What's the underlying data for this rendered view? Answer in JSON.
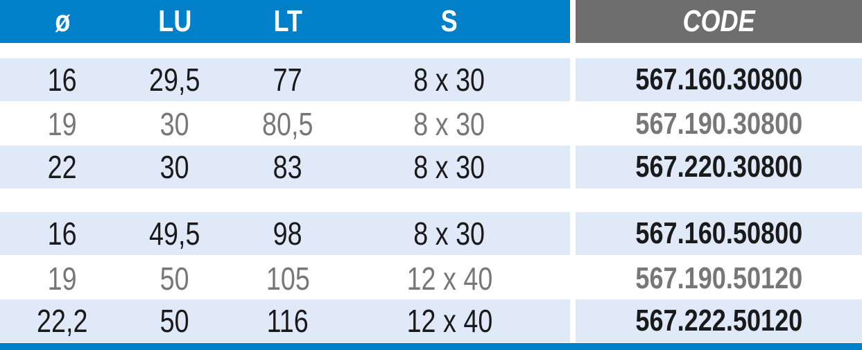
{
  "colors": {
    "header_blue": "#0080c9",
    "header_gray": "#6e6e6e",
    "row_shade": "#dfe9f7"
  },
  "header": {
    "diameter": "ø",
    "lu": "LU",
    "lt": "LT",
    "s": "S",
    "code": "CODE"
  },
  "groups": [
    {
      "rows": [
        {
          "d": "16",
          "lu": "29,5",
          "lt": "77",
          "s": "8 x 30",
          "code": "567.160.30800"
        },
        {
          "d": "19",
          "lu": "30",
          "lt": "80,5",
          "s": "8 x 30",
          "code": "567.190.30800"
        },
        {
          "d": "22",
          "lu": "30",
          "lt": "83",
          "s": "8 x 30",
          "code": "567.220.30800"
        }
      ]
    },
    {
      "rows": [
        {
          "d": "16",
          "lu": "49,5",
          "lt": "98",
          "s": "8 x 30",
          "code": "567.160.50800"
        },
        {
          "d": "19",
          "lu": "50",
          "lt": "105",
          "s": "12 x 40",
          "code": "567.190.50120"
        },
        {
          "d": "22,2",
          "lu": "50",
          "lt": "116",
          "s": "12 x 40",
          "code": "567.222.50120"
        }
      ]
    }
  ]
}
